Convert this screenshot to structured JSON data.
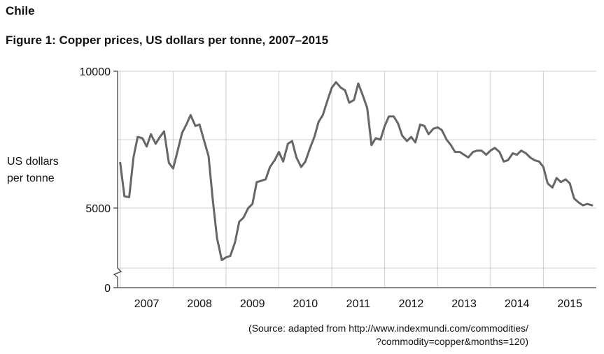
{
  "heading": "Chile",
  "chart_data": {
    "type": "line",
    "title": "Figure 1: Copper prices, US dollars per tonne, 2007–2015",
    "ylabel_lines": [
      "US dollars",
      "per tonne"
    ],
    "xlabel": "",
    "y_ticks": [
      0,
      5000,
      10000
    ],
    "y_tick_labels": [
      "0",
      "5000",
      "10000"
    ],
    "ylim": [
      0,
      10000
    ],
    "axis_break": true,
    "grid": true,
    "x_tick_labels": [
      "2007",
      "2008",
      "2009",
      "2010",
      "2011",
      "2012",
      "2013",
      "2014",
      "2015"
    ],
    "series": [
      {
        "color": "#666666",
        "x": [
          2007.0,
          2007.08,
          2007.17,
          2007.25,
          2007.33,
          2007.42,
          2007.5,
          2007.58,
          2007.67,
          2007.75,
          2007.83,
          2007.92,
          2008.0,
          2008.08,
          2008.17,
          2008.25,
          2008.33,
          2008.42,
          2008.5,
          2008.58,
          2008.67,
          2008.75,
          2008.83,
          2008.92,
          2009.0,
          2009.08,
          2009.17,
          2009.25,
          2009.33,
          2009.42,
          2009.5,
          2009.58,
          2009.67,
          2009.75,
          2009.83,
          2009.92,
          2010.0,
          2010.08,
          2010.17,
          2010.25,
          2010.33,
          2010.42,
          2010.5,
          2010.58,
          2010.67,
          2010.75,
          2010.83,
          2010.92,
          2011.0,
          2011.08,
          2011.17,
          2011.25,
          2011.33,
          2011.42,
          2011.5,
          2011.58,
          2011.67,
          2011.75,
          2011.83,
          2011.92,
          2012.0,
          2012.08,
          2012.17,
          2012.25,
          2012.33,
          2012.42,
          2012.5,
          2012.58,
          2012.67,
          2012.75,
          2012.83,
          2012.92,
          2013.0,
          2013.08,
          2013.17,
          2013.25,
          2013.33,
          2013.42,
          2013.5,
          2013.58,
          2013.67,
          2013.75,
          2013.83,
          2013.92,
          2014.0,
          2014.08,
          2014.17,
          2014.25,
          2014.33,
          2014.42,
          2014.5,
          2014.58,
          2014.67,
          2014.75,
          2014.83,
          2014.92,
          2015.0,
          2015.08,
          2015.17,
          2015.25,
          2015.33,
          2015.42,
          2015.5,
          2015.58,
          2015.67,
          2015.75,
          2015.83,
          2015.92
        ],
        "y": [
          6650,
          5430,
          5400,
          6850,
          7600,
          7550,
          7250,
          7700,
          7350,
          7600,
          7800,
          6650,
          6450,
          7050,
          7750,
          8050,
          8400,
          8000,
          8050,
          7500,
          6900,
          5300,
          3900,
          3100,
          3200,
          3250,
          3750,
          4500,
          4650,
          5000,
          5150,
          5950,
          6000,
          6050,
          6500,
          6750,
          7050,
          6700,
          7350,
          7450,
          6850,
          6500,
          6700,
          7150,
          7600,
          8150,
          8400,
          8950,
          9400,
          9600,
          9400,
          9300,
          8850,
          8950,
          9550,
          9150,
          8650,
          7300,
          7550,
          7500,
          8000,
          8350,
          8350,
          8100,
          7650,
          7450,
          7600,
          7400,
          8050,
          8000,
          7700,
          7900,
          7950,
          7850,
          7500,
          7300,
          7050,
          7050,
          6950,
          6850,
          7050,
          7100,
          7100,
          6950,
          7100,
          7200,
          7050,
          6700,
          6750,
          7000,
          6950,
          7100,
          7000,
          6850,
          6750,
          6700,
          6500,
          5900,
          5750,
          6100,
          5950,
          6050,
          5900,
          5350,
          5200,
          5100,
          5150,
          5100
        ]
      }
    ]
  },
  "source_lines": [
    "(Source: adapted from http://www.indexmundi.com/commodities/",
    "?commodity=copper&months=120)"
  ]
}
